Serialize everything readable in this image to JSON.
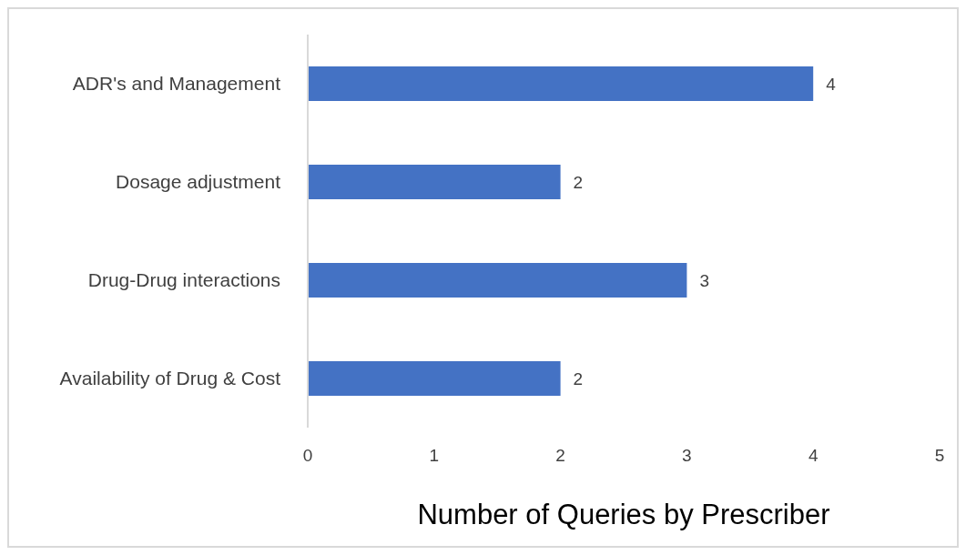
{
  "chart_data": {
    "type": "bar",
    "orientation": "horizontal",
    "xlabel": "Number of Queries by Prescriber",
    "categories": [
      "ADR's and Management",
      "Dosage adjustment",
      "Drug-Drug interactions",
      "Availability of Drug & Cost"
    ],
    "values": [
      4,
      2,
      3,
      2
    ],
    "color": "#4472c4",
    "xlim": [
      0,
      5
    ],
    "xticks": [
      0,
      1,
      2,
      3,
      4,
      5
    ],
    "grid": false,
    "data_labels": true,
    "legend": false
  }
}
